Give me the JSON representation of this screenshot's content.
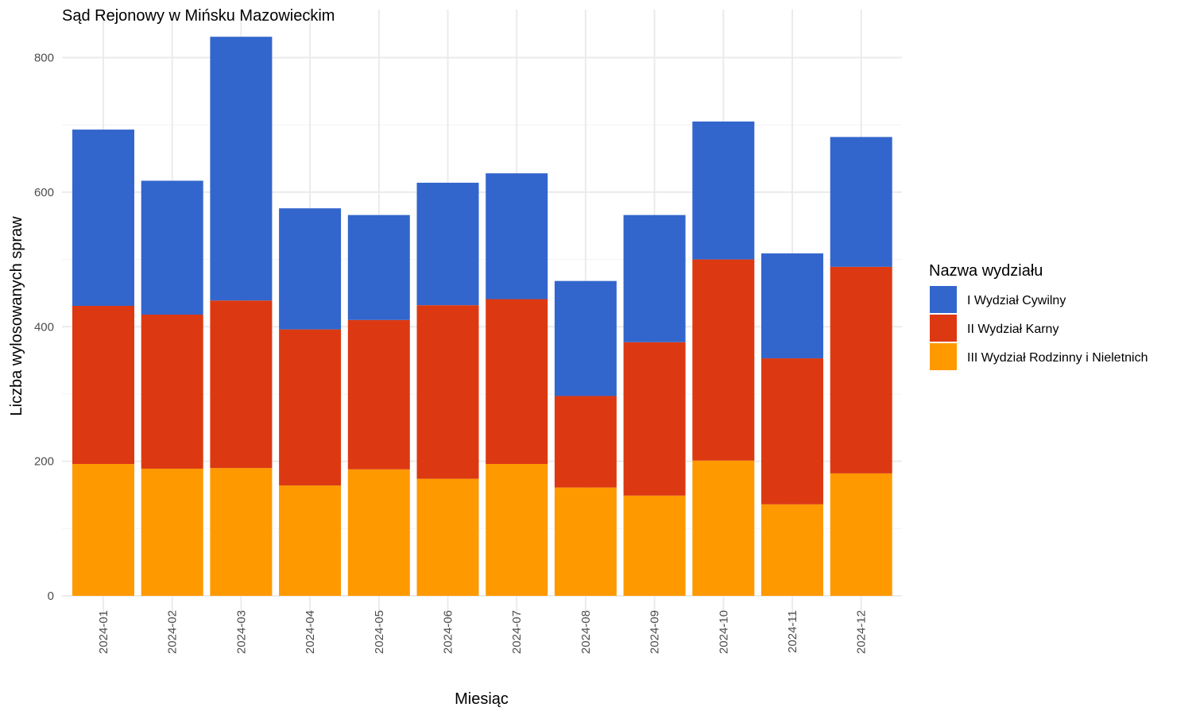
{
  "chart_data": {
    "type": "bar",
    "stacked": true,
    "title": "Sąd Rejonowy w Mińsku Mazowieckim",
    "xlabel": "Miesiąc",
    "ylabel": "Liczba wylosowanych spraw",
    "categories": [
      "2024-01",
      "2024-02",
      "2024-03",
      "2024-04",
      "2024-05",
      "2024-06",
      "2024-07",
      "2024-08",
      "2024-09",
      "2024-10",
      "2024-11",
      "2024-12"
    ],
    "ylim": [
      0,
      850
    ],
    "yticks": [
      0,
      200,
      400,
      600,
      800
    ],
    "grid": true,
    "legend": {
      "title": "Nazwa wydziału",
      "position": "right"
    },
    "series": [
      {
        "name": "III Wydział Rodzinny i Nieletnich",
        "color": "#ff9900",
        "values": [
          196,
          189,
          190,
          164,
          188,
          174,
          196,
          161,
          149,
          201,
          136,
          182
        ]
      },
      {
        "name": "II Wydział Karny",
        "color": "#dc3912",
        "values": [
          235,
          229,
          249,
          232,
          222,
          258,
          245,
          136,
          228,
          299,
          217,
          307
        ]
      },
      {
        "name": "I Wydział Cywilny",
        "color": "#3366cc",
        "values": [
          262,
          199,
          392,
          180,
          156,
          182,
          187,
          171,
          189,
          205,
          156,
          193
        ]
      }
    ],
    "legend_order": [
      "I Wydział Cywilny",
      "II Wydział Karny",
      "III Wydział Rodzinny i Nieletnich"
    ]
  }
}
